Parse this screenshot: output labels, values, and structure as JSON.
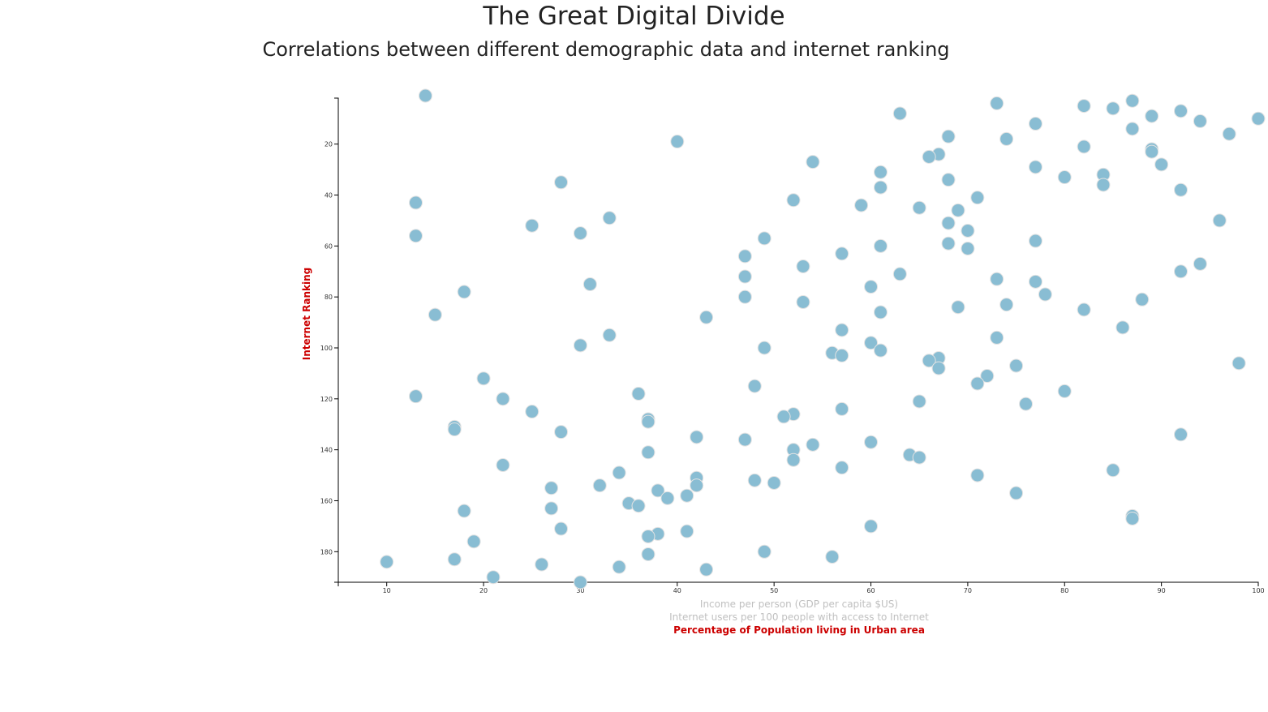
{
  "title": "The Great Digital Divide",
  "subtitle": "Correlations between different demographic data and internet ranking",
  "colors": {
    "point_fill": "#89bdd3",
    "point_stroke": "#e3e3e3",
    "active_label": "#cc0000",
    "inactive_label": "#c0c0c0"
  },
  "chart_data": {
    "type": "scatter",
    "title": "",
    "xlabel_options": [
      {
        "text": "Income per person (GDP per capita $US)",
        "active": false
      },
      {
        "text": "Internet users per 100 people with access to Internet",
        "active": false
      },
      {
        "text": "Percentage of Population living in Urban area",
        "active": true
      }
    ],
    "ylabel": "Internet Ranking",
    "xlim": [
      5,
      100
    ],
    "ylim": [
      1,
      192
    ],
    "y_inverted": true,
    "xticks": [
      10,
      20,
      30,
      40,
      50,
      60,
      70,
      80,
      90,
      100
    ],
    "yticks": [
      20,
      40,
      60,
      80,
      100,
      120,
      140,
      160,
      180
    ],
    "grid": false,
    "points": [
      [
        14,
        1
      ],
      [
        87,
        3
      ],
      [
        73,
        4
      ],
      [
        82,
        5
      ],
      [
        85,
        6
      ],
      [
        92,
        7
      ],
      [
        63,
        8
      ],
      [
        89,
        9
      ],
      [
        100,
        10
      ],
      [
        94,
        11
      ],
      [
        77,
        12
      ],
      [
        87,
        14
      ],
      [
        97,
        16
      ],
      [
        68,
        17
      ],
      [
        74,
        18
      ],
      [
        40,
        19
      ],
      [
        82,
        21
      ],
      [
        89,
        22
      ],
      [
        89,
        23
      ],
      [
        67,
        24
      ],
      [
        66,
        25
      ],
      [
        54,
        27
      ],
      [
        90,
        28
      ],
      [
        77,
        29
      ],
      [
        61,
        31
      ],
      [
        84,
        32
      ],
      [
        80,
        33
      ],
      [
        68,
        34
      ],
      [
        28,
        35
      ],
      [
        84,
        36
      ],
      [
        61,
        37
      ],
      [
        92,
        38
      ],
      [
        71,
        41
      ],
      [
        52,
        42
      ],
      [
        13,
        43
      ],
      [
        59,
        44
      ],
      [
        65,
        45
      ],
      [
        69,
        46
      ],
      [
        33,
        49
      ],
      [
        96,
        50
      ],
      [
        68,
        51
      ],
      [
        25,
        52
      ],
      [
        70,
        54
      ],
      [
        30,
        55
      ],
      [
        13,
        56
      ],
      [
        49,
        57
      ],
      [
        77,
        58
      ],
      [
        68,
        59
      ],
      [
        61,
        60
      ],
      [
        70,
        61
      ],
      [
        57,
        63
      ],
      [
        47,
        64
      ],
      [
        94,
        67
      ],
      [
        53,
        68
      ],
      [
        92,
        70
      ],
      [
        63,
        71
      ],
      [
        47,
        72
      ],
      [
        73,
        73
      ],
      [
        77,
        74
      ],
      [
        31,
        75
      ],
      [
        60,
        76
      ],
      [
        18,
        78
      ],
      [
        78,
        79
      ],
      [
        47,
        80
      ],
      [
        88,
        81
      ],
      [
        53,
        82
      ],
      [
        74,
        83
      ],
      [
        69,
        84
      ],
      [
        82,
        85
      ],
      [
        61,
        86
      ],
      [
        15,
        87
      ],
      [
        43,
        88
      ],
      [
        86,
        92
      ],
      [
        57,
        93
      ],
      [
        33,
        95
      ],
      [
        73,
        96
      ],
      [
        60,
        98
      ],
      [
        30,
        99
      ],
      [
        49,
        100
      ],
      [
        61,
        101
      ],
      [
        56,
        102
      ],
      [
        57,
        103
      ],
      [
        67,
        104
      ],
      [
        66,
        105
      ],
      [
        98,
        106
      ],
      [
        75,
        107
      ],
      [
        67,
        108
      ],
      [
        72,
        111
      ],
      [
        20,
        112
      ],
      [
        71,
        114
      ],
      [
        48,
        115
      ],
      [
        80,
        117
      ],
      [
        36,
        118
      ],
      [
        13,
        119
      ],
      [
        22,
        120
      ],
      [
        65,
        121
      ],
      [
        76,
        122
      ],
      [
        57,
        124
      ],
      [
        25,
        125
      ],
      [
        52,
        126
      ],
      [
        51,
        127
      ],
      [
        37,
        128
      ],
      [
        37,
        129
      ],
      [
        17,
        131
      ],
      [
        17,
        132
      ],
      [
        28,
        133
      ],
      [
        92,
        134
      ],
      [
        42,
        135
      ],
      [
        47,
        136
      ],
      [
        60,
        137
      ],
      [
        54,
        138
      ],
      [
        52,
        140
      ],
      [
        37,
        141
      ],
      [
        64,
        142
      ],
      [
        65,
        143
      ],
      [
        52,
        144
      ],
      [
        22,
        146
      ],
      [
        57,
        147
      ],
      [
        85,
        148
      ],
      [
        34,
        149
      ],
      [
        71,
        150
      ],
      [
        42,
        151
      ],
      [
        48,
        152
      ],
      [
        50,
        153
      ],
      [
        32,
        154
      ],
      [
        42,
        154
      ],
      [
        27,
        155
      ],
      [
        38,
        156
      ],
      [
        75,
        157
      ],
      [
        41,
        158
      ],
      [
        39,
        159
      ],
      [
        35,
        161
      ],
      [
        36,
        162
      ],
      [
        27,
        163
      ],
      [
        18,
        164
      ],
      [
        87,
        166
      ],
      [
        87,
        167
      ],
      [
        60,
        170
      ],
      [
        28,
        171
      ],
      [
        41,
        172
      ],
      [
        38,
        173
      ],
      [
        37,
        174
      ],
      [
        19,
        176
      ],
      [
        49,
        180
      ],
      [
        37,
        181
      ],
      [
        56,
        182
      ],
      [
        17,
        183
      ],
      [
        10,
        184
      ],
      [
        26,
        185
      ],
      [
        34,
        186
      ],
      [
        43,
        187
      ],
      [
        21,
        190
      ],
      [
        30,
        192
      ]
    ]
  }
}
